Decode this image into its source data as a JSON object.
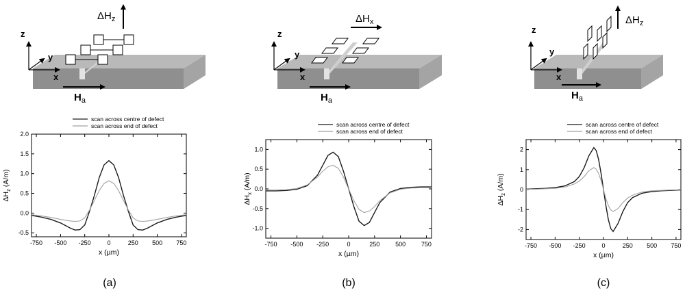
{
  "colors": {
    "center": "#1a1a1a",
    "end": "#a0a0a0",
    "slab_top": "#b9b9b9",
    "slab_front": "#8f8f8f",
    "slab_side": "#a4a4a4"
  },
  "diagrams": [
    {
      "axis_z": "z",
      "axis_y": "y",
      "axis_x": "x",
      "field_label": "ΔH",
      "field_sub": "z",
      "applied_label": "H",
      "applied_sub": "a"
    },
    {
      "axis_z": "z",
      "axis_y": "y",
      "axis_x": "x",
      "field_label": "ΔH",
      "field_sub": "x",
      "applied_label": "H",
      "applied_sub": "a"
    },
    {
      "axis_z": "z",
      "axis_y": "y",
      "axis_x": "x",
      "field_label": "ΔH",
      "field_sub": "z",
      "applied_label": "H",
      "applied_sub": "a"
    }
  ],
  "chart_data": [
    {
      "type": "line",
      "panel_label": "(a)",
      "xlabel": "x (µm)",
      "ylabel_main": "ΔH",
      "ylabel_sub": "z",
      "ylabel_unit": " (A/m)",
      "xlim": [
        -800,
        800
      ],
      "ylim": [
        -0.6,
        2.0
      ],
      "xticks": [
        "-750",
        "-500",
        "-250",
        "0",
        "250",
        "500",
        "750"
      ],
      "yticks": [
        "-0.5",
        "0.0",
        "0.5",
        "1.0",
        "1.5",
        "2.0"
      ],
      "legend": [
        "scan across centre of defect",
        "scan across end of defect"
      ],
      "series": [
        {
          "name": "scan across centre of defect",
          "x": [
            -800,
            -700,
            -600,
            -500,
            -400,
            -350,
            -300,
            -250,
            -200,
            -150,
            -100,
            -50,
            0,
            50,
            100,
            150,
            200,
            250,
            300,
            350,
            400,
            500,
            600,
            700,
            800
          ],
          "y": [
            -0.06,
            -0.1,
            -0.16,
            -0.25,
            -0.38,
            -0.43,
            -0.42,
            -0.3,
            0.05,
            0.45,
            0.9,
            1.22,
            1.33,
            1.22,
            0.9,
            0.45,
            0.05,
            -0.3,
            -0.42,
            -0.43,
            -0.38,
            -0.25,
            -0.16,
            -0.1,
            -0.06
          ]
        },
        {
          "name": "scan across end of defect",
          "x": [
            -800,
            -700,
            -600,
            -500,
            -400,
            -350,
            -300,
            -250,
            -200,
            -150,
            -100,
            -50,
            0,
            50,
            100,
            150,
            200,
            250,
            300,
            350,
            400,
            500,
            600,
            700,
            800
          ],
          "y": [
            -0.04,
            -0.07,
            -0.11,
            -0.16,
            -0.2,
            -0.21,
            -0.2,
            -0.12,
            0.08,
            0.32,
            0.57,
            0.75,
            0.82,
            0.75,
            0.57,
            0.32,
            0.08,
            -0.12,
            -0.2,
            -0.21,
            -0.2,
            -0.16,
            -0.11,
            -0.07,
            -0.04
          ]
        }
      ]
    },
    {
      "type": "line",
      "panel_label": "(b)",
      "xlabel": "x (µm)",
      "ylabel_main": "ΔH",
      "ylabel_sub": "x",
      "ylabel_unit": " (A/m)",
      "xlim": [
        -800,
        800
      ],
      "ylim": [
        -1.25,
        1.25
      ],
      "xticks": [
        "-750",
        "-500",
        "-250",
        "0",
        "250",
        "500",
        "750"
      ],
      "yticks": [
        "-1.0",
        "-0.5",
        "0.0",
        "0.5",
        "1.0"
      ],
      "legend": [
        "scan across centre of defect",
        "scan across end of defect"
      ],
      "series": [
        {
          "name": "scan across centre of defect",
          "x": [
            -800,
            -700,
            -600,
            -500,
            -400,
            -300,
            -250,
            -200,
            -150,
            -100,
            -50,
            0,
            50,
            100,
            150,
            200,
            250,
            300,
            400,
            500,
            600,
            700,
            800
          ],
          "y": [
            -0.05,
            -0.05,
            -0.04,
            -0.01,
            0.08,
            0.35,
            0.6,
            0.85,
            0.93,
            0.82,
            0.45,
            0.0,
            -0.45,
            -0.82,
            -0.93,
            -0.85,
            -0.6,
            -0.35,
            -0.08,
            0.01,
            0.04,
            0.05,
            0.05
          ]
        },
        {
          "name": "scan across end of defect",
          "x": [
            -800,
            -700,
            -600,
            -500,
            -400,
            -300,
            -250,
            -200,
            -150,
            -100,
            -50,
            0,
            50,
            100,
            150,
            200,
            250,
            300,
            400,
            500,
            600,
            700,
            800
          ],
          "y": [
            -0.03,
            -0.03,
            -0.02,
            0.01,
            0.1,
            0.3,
            0.45,
            0.56,
            0.6,
            0.52,
            0.3,
            0.0,
            -0.3,
            -0.52,
            -0.6,
            -0.56,
            -0.45,
            -0.3,
            -0.1,
            -0.01,
            0.02,
            0.03,
            0.03
          ]
        }
      ]
    },
    {
      "type": "line",
      "panel_label": "(c)",
      "xlabel": "x (µm)",
      "ylabel_main": "ΔH",
      "ylabel_sub": "z",
      "ylabel_unit": " (A/m)",
      "xlim": [
        -800,
        800
      ],
      "ylim": [
        -2.5,
        2.5
      ],
      "xticks": [
        "-750",
        "-500",
        "-250",
        "0",
        "250",
        "500",
        "750"
      ],
      "yticks": [
        "-2",
        "-1",
        "0",
        "1",
        "2"
      ],
      "legend": [
        "scan across centre of defect",
        "scan across end of defect"
      ],
      "series": [
        {
          "name": "scan across centre of defect",
          "x": [
            -800,
            -700,
            -600,
            -500,
            -400,
            -300,
            -250,
            -200,
            -150,
            -100,
            -75,
            -50,
            -25,
            0,
            25,
            50,
            75,
            100,
            150,
            200,
            250,
            300,
            400,
            500,
            600,
            700,
            800
          ],
          "y": [
            0.02,
            0.04,
            0.06,
            0.1,
            0.18,
            0.4,
            0.65,
            1.1,
            1.7,
            2.1,
            1.95,
            1.5,
            0.8,
            0.0,
            -0.8,
            -1.5,
            -1.95,
            -2.1,
            -1.7,
            -1.1,
            -0.65,
            -0.4,
            -0.18,
            -0.1,
            -0.06,
            -0.04,
            -0.02
          ]
        },
        {
          "name": "scan across end of defect",
          "x": [
            -800,
            -700,
            -600,
            -500,
            -400,
            -300,
            -250,
            -200,
            -150,
            -100,
            -75,
            -50,
            -25,
            0,
            25,
            50,
            75,
            100,
            150,
            200,
            250,
            300,
            400,
            500,
            600,
            700,
            800
          ],
          "y": [
            0.01,
            0.02,
            0.04,
            0.06,
            0.12,
            0.28,
            0.42,
            0.65,
            0.95,
            1.1,
            1.02,
            0.8,
            0.45,
            0.0,
            -0.45,
            -0.8,
            -1.02,
            -1.1,
            -0.95,
            -0.65,
            -0.42,
            -0.28,
            -0.12,
            -0.06,
            -0.04,
            -0.02,
            -0.01
          ]
        }
      ]
    }
  ]
}
